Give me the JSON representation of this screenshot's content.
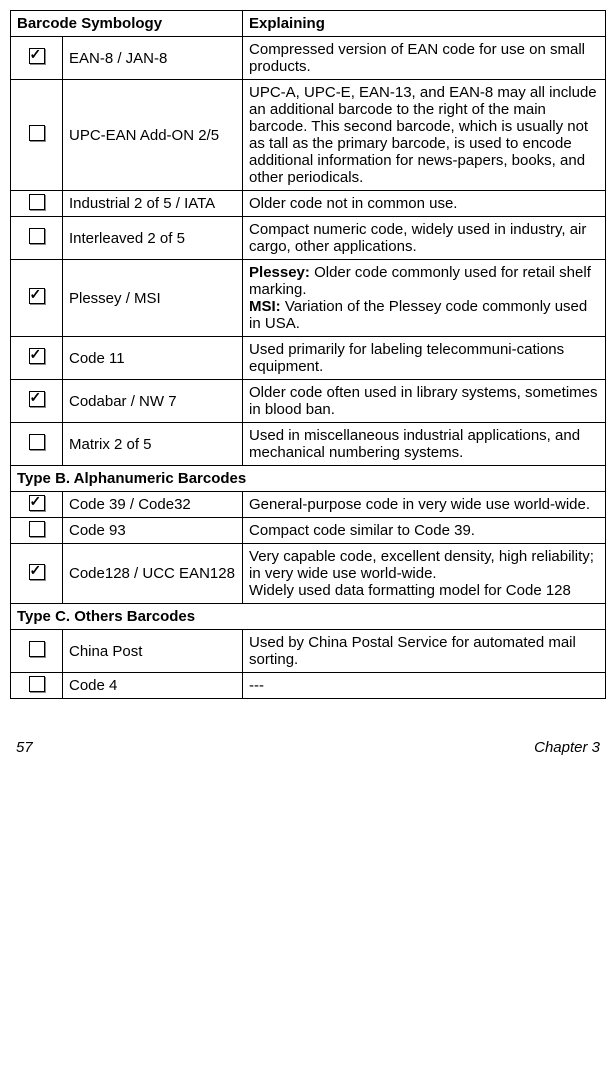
{
  "table": {
    "headers": {
      "col0": "",
      "col1": "Barcode Symbology",
      "col2": " Explaining"
    },
    "rows": [
      {
        "checked": true,
        "name": "EAN-8 / JAN-8",
        "explain": "Compressed version of EAN code for use on small products."
      },
      {
        "checked": false,
        "name": "UPC-EAN Add-ON 2/5",
        "explain": "UPC-A, UPC-E, EAN-13, and EAN-8 may all include an additional barcode to the right of the main barcode. This second barcode, which is usually not as tall as the primary barcode, is used to encode additional information for news-papers, books, and other periodicals."
      },
      {
        "checked": false,
        "name": "Industrial 2 of 5 / IATA",
        "explain": "Older code not in common use."
      },
      {
        "checked": false,
        "name": "Interleaved 2 of 5",
        "explain": "Compact numeric code, widely used in industry, air cargo, other applications."
      },
      {
        "checked": true,
        "name": "Plessey / MSI",
        "explain_html": "<b>Plessey:</b> Older code commonly used for retail shelf marking.<br><b>MSI:</b> Variation of the Plessey code commonly used in USA."
      },
      {
        "checked": true,
        "name": "Code 11",
        "explain": "Used primarily for labeling telecommuni-cations equipment."
      },
      {
        "checked": true,
        "name": "Codabar / NW 7",
        "explain": "Older code often used in library systems, sometimes in blood ban."
      },
      {
        "checked": false,
        "name": "Matrix 2 of 5",
        "explain": "Used in miscellaneous industrial applications, and mechanical numbering systems."
      },
      {
        "section": "Type B. Alphanumeric Barcodes"
      },
      {
        "checked": true,
        "name": "Code 39 / Code32",
        "explain": "General-purpose code in very wide use world-wide."
      },
      {
        "checked": false,
        "name": "Code 93",
        "explain": "Compact code similar to Code 39."
      },
      {
        "checked": true,
        "name": "Code128 / UCC EAN128",
        "explain": "Very capable code, excellent density, high reliability; in very wide use world-wide.\nWidely used data formatting model for Code 128"
      },
      {
        "section": "Type C. Others Barcodes"
      },
      {
        "checked": false,
        "name": "China Post",
        "explain": "Used by China Postal Service for automated mail sorting."
      },
      {
        "checked": false,
        "name": "Code 4",
        "explain": "---"
      }
    ]
  },
  "footer": {
    "page": "57",
    "chapter": "Chapter 3"
  }
}
